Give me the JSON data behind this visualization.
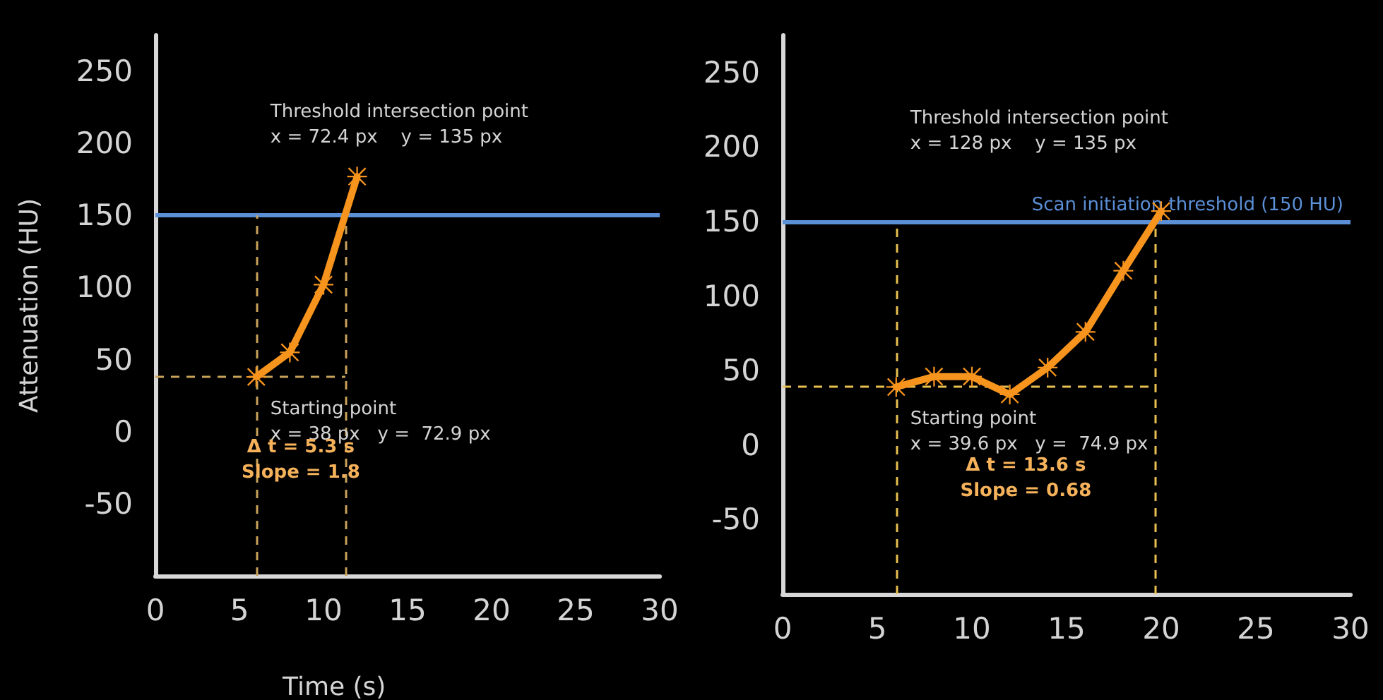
{
  "chart_data": [
    {
      "type": "line",
      "xlabel": "Time (s)",
      "ylabel": "Attenuation (HU)",
      "x": [
        6,
        8,
        10,
        12
      ],
      "series": [
        {
          "color": "#f7941d",
          "values": [
            38,
            55,
            102,
            177
          ]
        }
      ],
      "xlim": [
        0,
        30
      ],
      "xticks": [
        0,
        5,
        10,
        15,
        20,
        25,
        30
      ],
      "ylim": [
        -100,
        275
      ],
      "yticks": [
        -50,
        0,
        50,
        100,
        150,
        200,
        250
      ],
      "marker": "star",
      "grid": false,
      "ref_lines": [
        {
          "axis": "y",
          "value": 150,
          "label": null,
          "color": "#5b8fd6",
          "line_style": "solid"
        },
        {
          "axis": "y",
          "value": 38,
          "label": null,
          "color": "#c9a25a",
          "line_style": "dashed"
        },
        {
          "axis": "x",
          "value": 6,
          "label": null,
          "color": "#c9a25a",
          "line_style": "dashed"
        },
        {
          "axis": "x",
          "value": 11.3,
          "label": null,
          "color": "#c9a25a",
          "line_style": "dashed"
        }
      ],
      "annotations": [
        "Threshold intersection point\nx = 72.4 px    y = 135 px",
        "Starting point\nx = 38 px   y =  72.9 px",
        "Δ t = 5.3 s\nSlope = 1.8"
      ]
    },
    {
      "type": "line",
      "x": [
        6,
        8,
        10,
        12,
        14,
        16,
        18,
        20
      ],
      "series": [
        {
          "color": "#f7941d",
          "values": [
            39,
            46,
            46,
            34,
            52,
            76,
            117,
            157
          ]
        }
      ],
      "xlim": [
        0,
        30
      ],
      "xticks": [
        0,
        5,
        10,
        15,
        20,
        25,
        30
      ],
      "ylim": [
        -100,
        275
      ],
      "yticks": [
        -50,
        0,
        50,
        100,
        150,
        200,
        250
      ],
      "marker": "star",
      "grid": false,
      "ref_lines": [
        {
          "axis": "y",
          "value": 150,
          "label": "Scan initiation threshold (150 HU)",
          "color": "#5b8fd6",
          "line_style": "solid"
        },
        {
          "axis": "y",
          "value": 39,
          "label": null,
          "color": "#e8c050",
          "line_style": "dashed"
        },
        {
          "axis": "x",
          "value": 6,
          "label": null,
          "color": "#e8c050",
          "line_style": "dashed"
        },
        {
          "axis": "x",
          "value": 19.7,
          "label": null,
          "color": "#e8c050",
          "line_style": "dashed"
        }
      ],
      "annotations": [
        "Threshold intersection point\nx = 128 px    y = 135 px",
        "Starting point\nx = 39.6 px   y =  74.9 px",
        "Δ t = 13.6 s\nSlope = 0.68"
      ]
    }
  ]
}
